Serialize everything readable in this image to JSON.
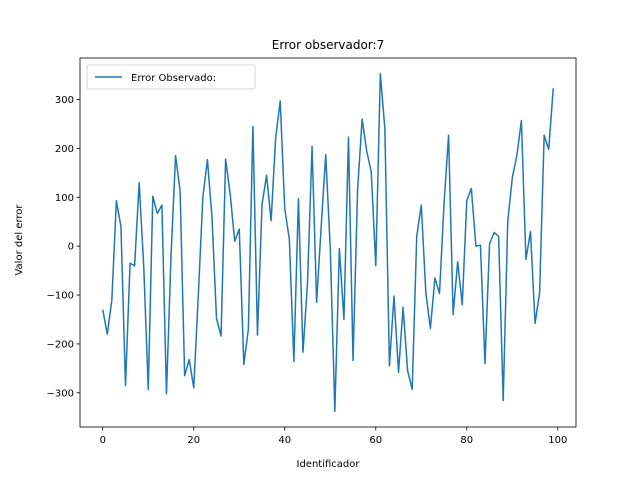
{
  "chart_data": {
    "type": "line",
    "title": "Error observador:7",
    "xlabel": "Identificador",
    "ylabel": "Valor del error",
    "xlim": [
      -5,
      104
    ],
    "ylim": [
      -370,
      385
    ],
    "xticks": [
      0,
      20,
      40,
      60,
      80,
      100
    ],
    "yticks": [
      -300,
      -200,
      -100,
      0,
      100,
      200,
      300
    ],
    "grid": false,
    "legend_position": "upper left",
    "series": [
      {
        "name": "Error Observado:",
        "color": "#1f77b4",
        "x": [
          0,
          1,
          2,
          3,
          4,
          5,
          6,
          7,
          8,
          9,
          10,
          11,
          12,
          13,
          14,
          15,
          16,
          17,
          18,
          19,
          20,
          21,
          22,
          23,
          24,
          25,
          26,
          27,
          28,
          29,
          30,
          31,
          32,
          33,
          34,
          35,
          36,
          37,
          38,
          39,
          40,
          41,
          42,
          43,
          44,
          45,
          46,
          47,
          48,
          49,
          50,
          51,
          52,
          53,
          54,
          55,
          56,
          57,
          58,
          59,
          60,
          61,
          62,
          63,
          64,
          65,
          66,
          67,
          68,
          69,
          70,
          71,
          72,
          73,
          74,
          75,
          76,
          77,
          78,
          79,
          80,
          81,
          82,
          83,
          84,
          85,
          86,
          87,
          88,
          89,
          90,
          91,
          92,
          93,
          94,
          95,
          96,
          97,
          98,
          99
        ],
        "values": [
          -130,
          -180,
          -110,
          93,
          40,
          -285,
          -35,
          -40,
          130,
          -40,
          -293,
          102,
          67,
          84,
          -302,
          -20,
          185,
          113,
          -265,
          -232,
          -290,
          -100,
          100,
          177,
          60,
          -148,
          -184,
          178,
          107,
          10,
          35,
          -242,
          -170,
          245,
          -182,
          85,
          145,
          52,
          222,
          297,
          76,
          15,
          -236,
          97,
          -217,
          -75,
          204,
          -115,
          40,
          187,
          -5,
          -338,
          -5,
          -150,
          223,
          -234,
          115,
          260,
          195,
          152,
          -40,
          353,
          240,
          -245,
          -102,
          -258,
          -125,
          -255,
          -293,
          20,
          84,
          -95,
          -168,
          -65,
          -97,
          87,
          227,
          -140,
          -32,
          -120,
          93,
          118,
          0,
          2,
          -240,
          5,
          28,
          20,
          -316,
          50,
          140,
          185,
          257,
          -27,
          30,
          -158,
          -95,
          227,
          198,
          323
        ]
      }
    ]
  }
}
